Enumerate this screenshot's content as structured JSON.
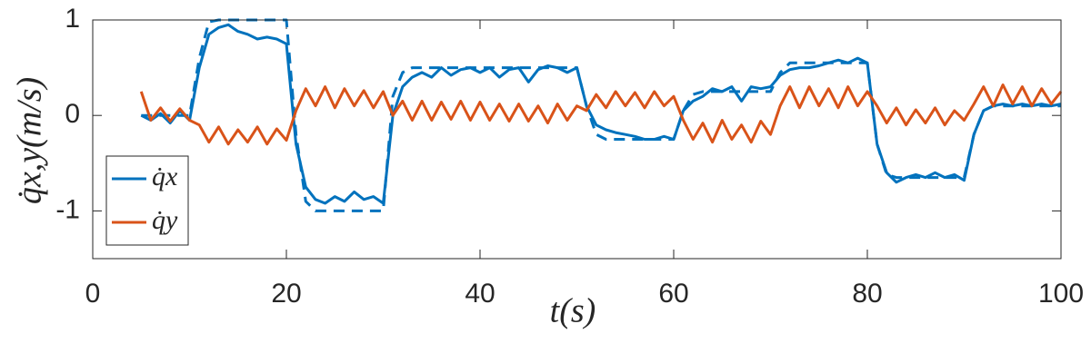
{
  "chart_data": {
    "type": "line",
    "xlabel": "t(s)",
    "ylabel": "q̇x,y(m/s)",
    "x": [
      5,
      6,
      7,
      8,
      9,
      10,
      11,
      12,
      13,
      14,
      15,
      16,
      17,
      18,
      19,
      20,
      21,
      22,
      23,
      24,
      25,
      26,
      27,
      28,
      29,
      30,
      31,
      32,
      33,
      34,
      35,
      36,
      37,
      38,
      39,
      40,
      41,
      42,
      43,
      44,
      45,
      46,
      47,
      48,
      49,
      50,
      51,
      52,
      53,
      54,
      55,
      56,
      57,
      58,
      59,
      60,
      61,
      62,
      63,
      64,
      65,
      66,
      67,
      68,
      69,
      70,
      71,
      72,
      73,
      74,
      75,
      76,
      77,
      78,
      79,
      80,
      81,
      82,
      83,
      84,
      85,
      86,
      87,
      88,
      89,
      90,
      91,
      92,
      93,
      94,
      95,
      96,
      97,
      98,
      99,
      100
    ],
    "series": [
      {
        "name": "q̇x",
        "color": "#0072bd",
        "values": [
          0,
          -0.05,
          0.02,
          -0.08,
          0.05,
          -0.05,
          0.5,
          0.85,
          0.92,
          0.95,
          0.88,
          0.85,
          0.8,
          0.82,
          0.8,
          0.75,
          -0.3,
          -0.75,
          -0.88,
          -0.92,
          -0.85,
          -0.9,
          -0.8,
          -0.88,
          -0.85,
          -0.92,
          0,
          0.3,
          0.4,
          0.45,
          0.4,
          0.5,
          0.42,
          0.48,
          0.5,
          0.45,
          0.5,
          0.4,
          0.48,
          0.5,
          0.35,
          0.48,
          0.52,
          0.5,
          0.45,
          0.5,
          0.1,
          -0.1,
          -0.15,
          -0.18,
          -0.2,
          -0.22,
          -0.25,
          -0.25,
          -0.22,
          -0.25,
          0.05,
          0.15,
          0.2,
          0.28,
          0.25,
          0.3,
          0.15,
          0.3,
          0.28,
          0.3,
          0.42,
          0.48,
          0.5,
          0.5,
          0.52,
          0.55,
          0.58,
          0.55,
          0.6,
          0.55,
          -0.3,
          -0.6,
          -0.7,
          -0.65,
          -0.62,
          -0.65,
          -0.6,
          -0.65,
          -0.62,
          -0.68,
          -0.2,
          0.05,
          0.1,
          0.12,
          0.1,
          0.12,
          0.1,
          0.12,
          0.1,
          0.12
        ]
      },
      {
        "name": "q̇y",
        "color": "#d95319",
        "values": [
          0.25,
          -0.05,
          0.08,
          -0.06,
          0.07,
          -0.05,
          -0.1,
          -0.28,
          -0.12,
          -0.3,
          -0.15,
          -0.28,
          -0.12,
          -0.3,
          -0.14,
          -0.26,
          0.05,
          0.28,
          0.1,
          0.3,
          0.08,
          0.28,
          0.1,
          0.26,
          0.08,
          0.25,
          0,
          0.15,
          -0.05,
          0.15,
          -0.05,
          0.14,
          -0.04,
          0.15,
          -0.05,
          0.14,
          -0.05,
          0.12,
          -0.06,
          0.12,
          -0.06,
          0.1,
          -0.08,
          0.12,
          -0.05,
          0.1,
          0.05,
          0.22,
          0.08,
          0.25,
          0.1,
          0.24,
          0.08,
          0.25,
          0.1,
          0.2,
          -0.05,
          -0.25,
          -0.08,
          -0.28,
          -0.05,
          -0.25,
          -0.1,
          -0.28,
          -0.06,
          -0.2,
          0.1,
          0.3,
          0.08,
          0.3,
          0.1,
          0.28,
          0.08,
          0.3,
          0.1,
          0.25,
          0.1,
          -0.08,
          0.08,
          -0.1,
          0.06,
          -0.08,
          0.08,
          -0.1,
          0.05,
          -0.05,
          0.12,
          0.3,
          0.1,
          0.32,
          0.12,
          0.3,
          0.1,
          0.28,
          0.12,
          0.25
        ]
      },
      {
        "color": "#0072bd",
        "dashed": true,
        "values": [
          0,
          0,
          0,
          0,
          0,
          0,
          0.6,
          0.98,
          1,
          1,
          1,
          1,
          1,
          1,
          1,
          1,
          -0.2,
          -0.9,
          -1,
          -1,
          -1,
          -1,
          -1,
          -1,
          -1,
          -1,
          0.2,
          0.45,
          0.5,
          0.5,
          0.5,
          0.5,
          0.5,
          0.5,
          0.5,
          0.5,
          0.5,
          0.5,
          0.5,
          0.5,
          0.5,
          0.5,
          0.5,
          0.5,
          0.5,
          0.5,
          0.1,
          -0.2,
          -0.25,
          -0.25,
          -0.25,
          -0.25,
          -0.25,
          -0.25,
          -0.25,
          -0.25,
          0.05,
          0.22,
          0.25,
          0.25,
          0.25,
          0.25,
          0.25,
          0.25,
          0.25,
          0.25,
          0.45,
          0.55,
          0.55,
          0.55,
          0.55,
          0.55,
          0.55,
          0.55,
          0.55,
          0.55,
          -0.3,
          -0.62,
          -0.65,
          -0.65,
          -0.65,
          -0.65,
          -0.65,
          -0.65,
          -0.65,
          -0.65,
          -0.2,
          0.05,
          0.1,
          0.1,
          0.1,
          0.1,
          0.1,
          0.1,
          0.1,
          0.1
        ]
      }
    ],
    "xlim": [
      0,
      100
    ],
    "xticks": [
      0,
      20,
      40,
      60,
      80,
      100
    ],
    "ylim": [
      -1.5,
      1
    ],
    "yticks": [
      -1,
      0,
      1
    ],
    "legend": "bottom-left"
  }
}
